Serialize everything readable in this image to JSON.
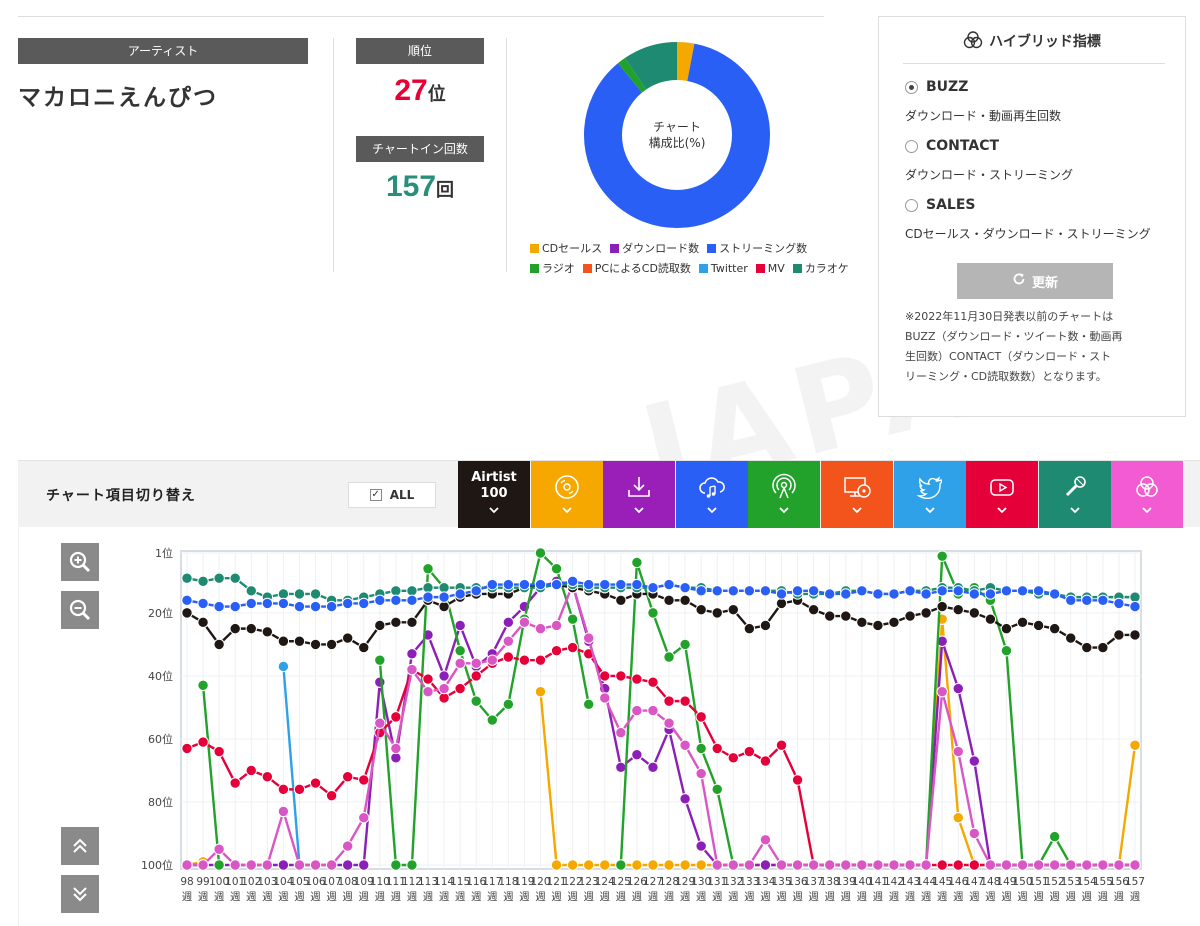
{
  "watermark": "JAPAN",
  "artist": {
    "label": "アーティスト",
    "name": "マカロニえんぴつ"
  },
  "rank": {
    "label": "順位",
    "value": "27",
    "unit": "位"
  },
  "chart_in": {
    "label": "チャートイン回数",
    "value": "157",
    "unit": "回"
  },
  "donut": {
    "center_line1": "チャート",
    "center_line2": "構成比(%)",
    "slices": [
      {
        "name": "CDセールス",
        "percent": 3,
        "color": "#f5a800"
      },
      {
        "name": "ストリーミング数",
        "percent": 86,
        "color": "#2a5ff5"
      },
      {
        "name": "ラジオ",
        "percent": 1.5,
        "color": "#22a22a"
      },
      {
        "name": "カラオケ",
        "percent": 9.5,
        "color": "#1e8a72"
      }
    ]
  },
  "legend": [
    [
      {
        "label": "CDセールス",
        "color": "#f5a800"
      },
      {
        "label": "ダウンロード数",
        "color": "#8c1fb8"
      },
      {
        "label": "ストリーミング数",
        "color": "#2a5ff5"
      }
    ],
    [
      {
        "label": "ラジオ",
        "color": "#22a22a"
      },
      {
        "label": "PCによるCD読取数",
        "color": "#f2541b"
      },
      {
        "label": "Twitter",
        "color": "#2ea1e8"
      },
      {
        "label": "MV",
        "color": "#e6003a"
      },
      {
        "label": "カラオケ",
        "color": "#1e8a72"
      }
    ]
  ],
  "hybrid": {
    "title": "ハイブリッド指標",
    "options": [
      {
        "label": "BUZZ",
        "desc": "ダウンロード・動画再生回数",
        "selected": true
      },
      {
        "label": "CONTACT",
        "desc": "ダウンロード・ストリーミング",
        "selected": false
      },
      {
        "label": "SALES",
        "desc": "CDセールス・ダウンロード・ストリーミング",
        "selected": false
      }
    ],
    "update_label": "更新",
    "note_lines": [
      "※2022年11月30日発表以前のチャートは",
      "BUZZ（ダウンロード・ツイート数・動画再",
      "生回数）CONTACT（ダウンロード・スト",
      "リーミング・CD読取数数）となります。"
    ]
  },
  "switcher": {
    "label": "チャート項目切り替え",
    "all_label": "ALL",
    "all_checked": true,
    "tabs": [
      {
        "name": "airtist",
        "line1": "Airtist",
        "line2": "100",
        "color": "#1e1714",
        "icon": "text"
      },
      {
        "name": "cd",
        "color": "#f7a800",
        "icon": "disc-icon"
      },
      {
        "name": "download",
        "color": "#9a1fb8",
        "icon": "download-icon"
      },
      {
        "name": "streaming",
        "color": "#2a5ff5",
        "icon": "cloud-music-icon"
      },
      {
        "name": "radio",
        "color": "#22a22a",
        "icon": "radio-icon"
      },
      {
        "name": "pc-cd",
        "color": "#f2541b",
        "icon": "pc-disc-icon"
      },
      {
        "name": "twitter",
        "color": "#2ea1e8",
        "icon": "twitter-icon"
      },
      {
        "name": "mv",
        "color": "#e6003a",
        "icon": "youtube-icon"
      },
      {
        "name": "karaoke",
        "color": "#1e8a72",
        "icon": "mic-icon"
      },
      {
        "name": "hybrid",
        "color": "#f25bd2",
        "icon": "venn-icon"
      }
    ]
  },
  "chart_data": {
    "type": "line",
    "y_reversed": true,
    "ylim": [
      1,
      100
    ],
    "ytick_labels": [
      "1位",
      "20位",
      "40位",
      "60位",
      "80位",
      "100位"
    ],
    "ytick_values": [
      1,
      20,
      40,
      60,
      80,
      100
    ],
    "x_weeks": [
      98,
      99,
      100,
      101,
      102,
      103,
      104,
      105,
      106,
      107,
      108,
      109,
      110,
      111,
      112,
      113,
      114,
      115,
      116,
      117,
      118,
      119,
      120,
      121,
      122,
      123,
      124,
      125,
      126,
      127,
      128,
      129,
      130,
      131,
      132,
      133,
      134,
      135,
      136,
      137,
      138,
      139,
      140,
      141,
      142,
      143,
      144,
      145,
      146,
      147,
      148,
      149,
      150,
      151,
      152,
      153,
      154,
      155,
      156,
      157
    ],
    "x_unit": "週",
    "series": [
      {
        "key": "cd",
        "color": "#f5a800",
        "values": [
          100,
          99,
          null,
          null,
          null,
          null,
          null,
          null,
          null,
          null,
          null,
          null,
          null,
          null,
          null,
          null,
          null,
          null,
          null,
          null,
          null,
          null,
          45,
          100,
          100,
          100,
          100,
          100,
          100,
          100,
          100,
          100,
          100,
          100,
          100,
          100,
          100,
          100,
          100,
          100,
          100,
          100,
          100,
          100,
          100,
          100,
          100,
          22,
          85,
          100,
          100,
          100,
          100,
          100,
          100,
          100,
          100,
          100,
          100,
          62
        ]
      },
      {
        "key": "download",
        "color": "#8c1fb8",
        "values": [
          100,
          100,
          100,
          100,
          100,
          100,
          100,
          100,
          100,
          100,
          100,
          100,
          42,
          66,
          33,
          27,
          40,
          24,
          37,
          33,
          23,
          18,
          12,
          10,
          11,
          29,
          44,
          69,
          65,
          69,
          57,
          79,
          94,
          100,
          100,
          100,
          100,
          100,
          100,
          100,
          100,
          100,
          100,
          100,
          100,
          100,
          100,
          29,
          44,
          67,
          100,
          100,
          100,
          100,
          100,
          100,
          100,
          100,
          100,
          100
        ]
      },
      {
        "key": "streaming",
        "color": "#2a5ff5",
        "values": [
          16,
          17,
          18,
          18,
          17,
          17,
          17,
          18,
          18,
          18,
          17,
          17,
          16,
          16,
          16,
          15,
          15,
          14,
          13,
          11,
          11,
          11,
          11,
          11,
          10,
          11,
          11,
          11,
          11,
          12,
          11,
          12,
          13,
          13,
          13,
          13,
          13,
          14,
          13,
          13,
          14,
          14,
          13,
          14,
          14,
          13,
          14,
          13,
          13,
          14,
          14,
          13,
          13,
          13,
          14,
          16,
          16,
          16,
          17,
          18
        ]
      },
      {
        "key": "radio",
        "color": "#22a22a",
        "values": [
          null,
          43,
          100,
          null,
          null,
          null,
          null,
          null,
          null,
          null,
          null,
          null,
          35,
          100,
          100,
          6,
          12,
          32,
          48,
          54,
          49,
          22,
          1,
          6,
          22,
          49,
          null,
          100,
          4,
          20,
          34,
          30,
          63,
          76,
          100,
          null,
          null,
          null,
          null,
          null,
          100,
          100,
          100,
          100,
          100,
          100,
          100,
          2,
          14,
          12,
          16,
          32,
          100,
          100,
          91,
          100,
          100,
          100,
          100,
          100
        ]
      },
      {
        "key": "pc-cd",
        "color": "#f2541b",
        "values": []
      },
      {
        "key": "twitter",
        "color": "#2ea1e8",
        "values": [
          null,
          100,
          null,
          null,
          null,
          null,
          37,
          100,
          null,
          null,
          null,
          null,
          null,
          null,
          null,
          null,
          null,
          null,
          null,
          null,
          null,
          null,
          null,
          null,
          null,
          null,
          null,
          null,
          null,
          null,
          null,
          null,
          null,
          null,
          null,
          null,
          null,
          null,
          null,
          null,
          null,
          null,
          null,
          null,
          null,
          null,
          null,
          null,
          null,
          null,
          null,
          null,
          null,
          null,
          null,
          null,
          null,
          null,
          null,
          null
        ]
      },
      {
        "key": "mv",
        "color": "#e6003a",
        "values": [
          63,
          61,
          64,
          74,
          70,
          72,
          76,
          76,
          74,
          78,
          72,
          73,
          58,
          53,
          38,
          41,
          47,
          44,
          40,
          36,
          34,
          35,
          35,
          32,
          31,
          33,
          40,
          40,
          41,
          42,
          48,
          48,
          53,
          63,
          66,
          64,
          67,
          62,
          73,
          100,
          100,
          100,
          100,
          100,
          100,
          100,
          100,
          100,
          100,
          100,
          100,
          100,
          100,
          100,
          100,
          100,
          100,
          100,
          100,
          100
        ]
      },
      {
        "key": "karaoke",
        "color": "#1e8a72",
        "values": [
          9,
          10,
          9,
          9,
          13,
          15,
          14,
          14,
          14,
          16,
          16,
          15,
          14,
          13,
          13,
          12,
          12,
          12,
          12,
          12,
          12,
          12,
          12,
          11,
          11,
          12,
          12,
          12,
          12,
          12,
          11,
          12,
          12,
          13,
          13,
          13,
          13,
          13,
          14,
          14,
          14,
          13,
          13,
          14,
          14,
          13,
          13,
          12,
          12,
          13,
          12,
          13,
          13,
          14,
          14,
          15,
          15,
          15,
          15,
          15
        ]
      },
      {
        "key": "hybrid",
        "color": "#d957c4",
        "values": [
          100,
          100,
          95,
          100,
          100,
          100,
          83,
          100,
          100,
          100,
          94,
          85,
          55,
          63,
          38,
          45,
          44,
          36,
          36,
          35,
          29,
          23,
          25,
          24,
          11,
          28,
          47,
          58,
          51,
          51,
          55,
          62,
          71,
          100,
          100,
          100,
          92,
          100,
          100,
          100,
          100,
          100,
          100,
          100,
          100,
          100,
          100,
          45,
          64,
          90,
          100,
          100,
          100,
          100,
          100,
          100,
          100,
          100,
          100,
          100
        ]
      },
      {
        "key": "airtist",
        "color": "#1e1714",
        "values": [
          20,
          23,
          30,
          25,
          25,
          26,
          29,
          29,
          30,
          30,
          28,
          31,
          24,
          23,
          23,
          16,
          18,
          15,
          14,
          14,
          14,
          12,
          11,
          11,
          12,
          13,
          14,
          16,
          14,
          14,
          16,
          16,
          19,
          20,
          19,
          25,
          24,
          17,
          16,
          19,
          21,
          21,
          23,
          24,
          23,
          21,
          20,
          18,
          19,
          20,
          22,
          25,
          23,
          24,
          25,
          28,
          31,
          31,
          27,
          27
        ]
      }
    ]
  }
}
